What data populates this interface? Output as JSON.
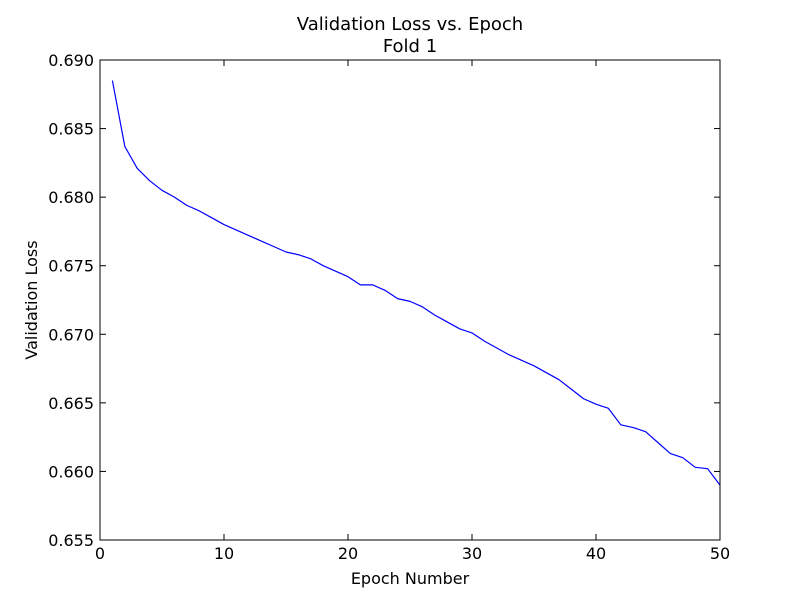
{
  "chart_data": {
    "type": "line",
    "title": "Validation Loss vs. Epoch",
    "subtitle": "Fold 1",
    "xlabel": "Epoch Number",
    "ylabel": "Validation Loss",
    "xlim": [
      0,
      50
    ],
    "ylim": [
      0.655,
      0.69
    ],
    "xticks": [
      0,
      10,
      20,
      30,
      40,
      50
    ],
    "yticks": [
      0.655,
      0.66,
      0.665,
      0.67,
      0.675,
      0.68,
      0.685,
      0.69
    ],
    "xtick_labels": [
      "0",
      "10",
      "20",
      "30",
      "40",
      "50"
    ],
    "ytick_labels": [
      "0.655",
      "0.660",
      "0.665",
      "0.670",
      "0.675",
      "0.680",
      "0.685",
      "0.690"
    ],
    "grid": false,
    "series": [
      {
        "color": "#0000ff",
        "x": [
          1,
          2,
          3,
          4,
          5,
          6,
          7,
          8,
          9,
          10,
          11,
          12,
          13,
          14,
          15,
          16,
          17,
          18,
          19,
          20,
          21,
          22,
          23,
          24,
          25,
          26,
          27,
          28,
          29,
          30,
          31,
          32,
          33,
          34,
          35,
          36,
          37,
          38,
          39,
          40,
          41,
          42,
          43,
          44,
          45,
          46,
          47,
          48,
          49,
          50
        ],
        "y": [
          0.6885,
          0.6837,
          0.6821,
          0.6812,
          0.6805,
          0.68,
          0.6794,
          0.679,
          0.6785,
          0.678,
          0.6776,
          0.6772,
          0.6768,
          0.6764,
          0.676,
          0.6758,
          0.6755,
          0.675,
          0.6746,
          0.6742,
          0.6736,
          0.6736,
          0.6732,
          0.6726,
          0.6724,
          0.672,
          0.6714,
          0.6709,
          0.6704,
          0.6701,
          0.6695,
          0.669,
          0.6685,
          0.6681,
          0.6677,
          0.6672,
          0.6667,
          0.666,
          0.6653,
          0.6649,
          0.6646,
          0.6634,
          0.6632,
          0.6629,
          0.6621,
          0.6613,
          0.661,
          0.6603,
          0.6602,
          0.659
        ]
      }
    ]
  }
}
